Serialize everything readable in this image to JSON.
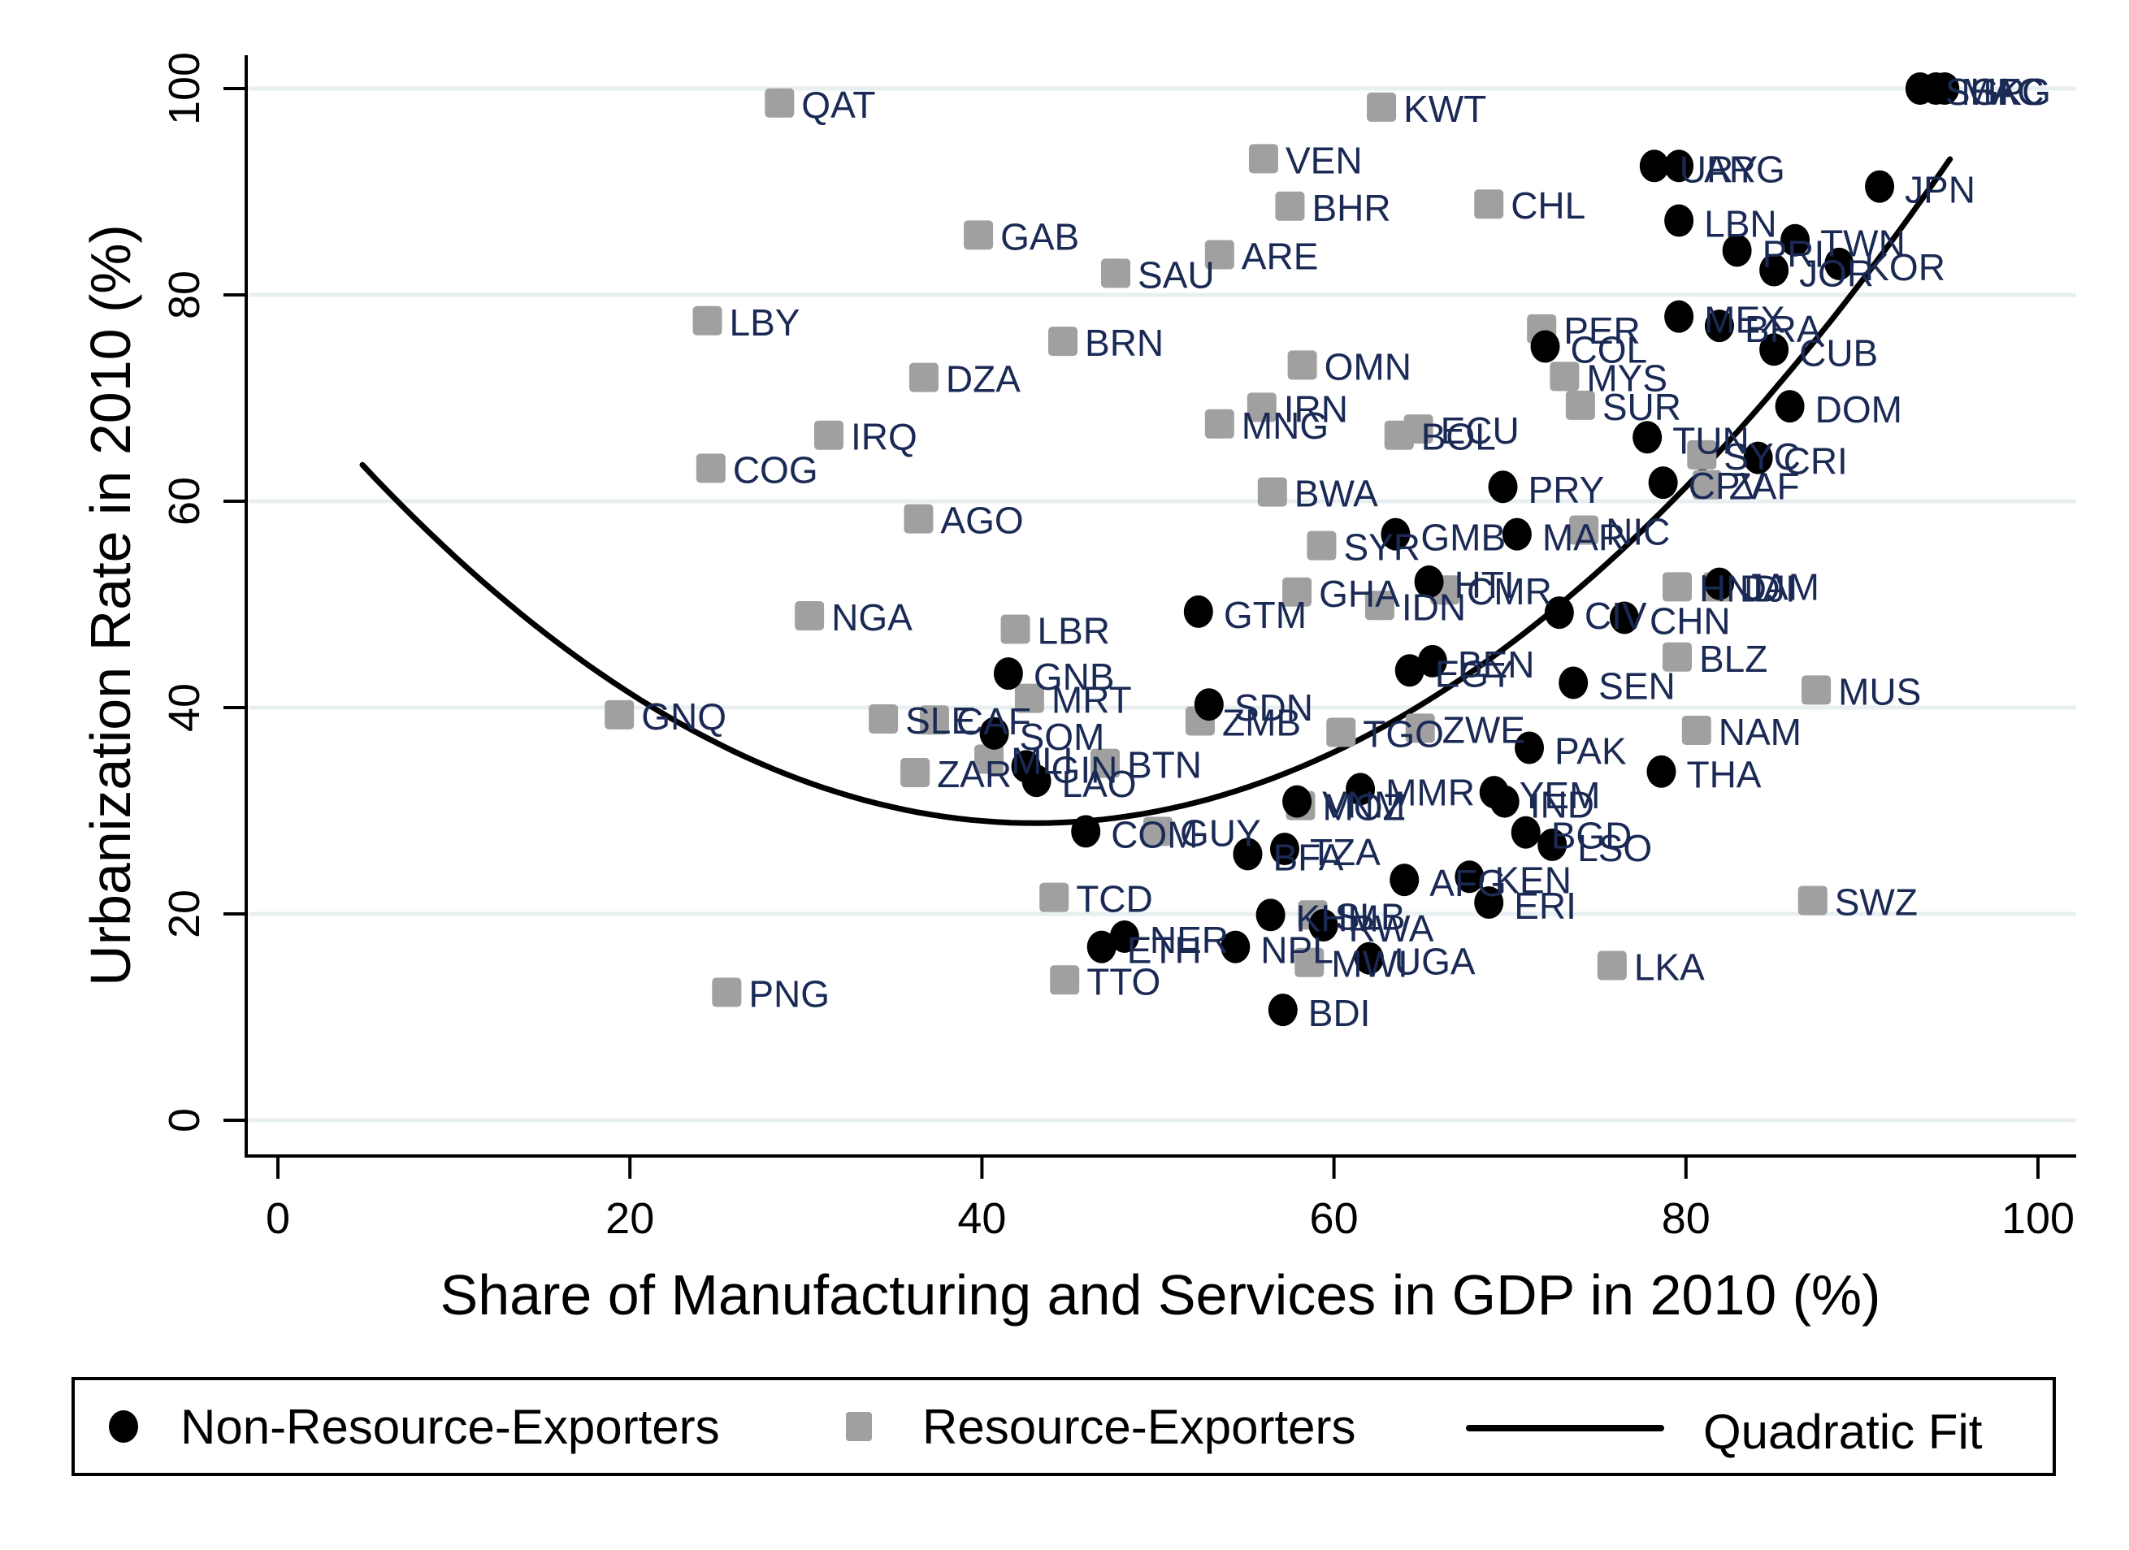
{
  "chart_data": {
    "type": "scatter",
    "title": "",
    "xlabel": "Share of Manufacturing and Services in GDP in 2010 (%)",
    "ylabel": "Urbanization Rate in 2010 (%)",
    "xlim": [
      -2,
      102
    ],
    "ylim": [
      -3,
      103
    ],
    "xticks": [
      0,
      20,
      40,
      60,
      80,
      100
    ],
    "yticks": [
      0,
      20,
      40,
      60,
      80,
      100
    ],
    "grid": "horizontal",
    "legend_position": "bottom",
    "colors": {
      "non_resource": "#000000",
      "resource": "#a0a0a0",
      "fit": "#000000",
      "label": "#1a2a55",
      "grid": "#e8eff1"
    },
    "legend": [
      {
        "name": "Non-Resource-Exporters",
        "marker": "circle"
      },
      {
        "name": "Resource-Exporters",
        "marker": "square"
      },
      {
        "name": "Quadratic Fit",
        "marker": "line"
      }
    ],
    "fit": {
      "name": "Quadratic Fit",
      "formula": "y = 28.8 + 0.0238*(x-43)^2",
      "vertex_x": 43,
      "vertex_y": 28.8,
      "a": 0.0238,
      "x_range": [
        4.8,
        95
      ]
    },
    "series": [
      {
        "name": "Non-Resource-Exporters",
        "points": [
          {
            "label": "SGP",
            "x": 93.3,
            "y": 100.0
          },
          {
            "label": "MAC",
            "x": 94.2,
            "y": 100.0
          },
          {
            "label": "HKG",
            "x": 94.7,
            "y": 100.0
          },
          {
            "label": "URY",
            "x": 78.2,
            "y": 92.5
          },
          {
            "label": "ARG",
            "x": 79.6,
            "y": 92.5
          },
          {
            "label": "JPN",
            "x": 91.0,
            "y": 90.5
          },
          {
            "label": "LBN",
            "x": 79.6,
            "y": 87.2
          },
          {
            "label": "PRI",
            "x": 82.9,
            "y": 84.3
          },
          {
            "label": "TWN",
            "x": 86.2,
            "y": 85.3
          },
          {
            "label": "JOR",
            "x": 85.0,
            "y": 82.4
          },
          {
            "label": "KOR",
            "x": 88.7,
            "y": 83.0
          },
          {
            "label": "MEX",
            "x": 79.6,
            "y": 77.9
          },
          {
            "label": "BRA",
            "x": 81.9,
            "y": 77.0
          },
          {
            "label": "CUB",
            "x": 85.0,
            "y": 74.7
          },
          {
            "label": "COL",
            "x": 72.0,
            "y": 75.0
          },
          {
            "label": "DOM",
            "x": 85.9,
            "y": 69.2
          },
          {
            "label": "TUN",
            "x": 77.8,
            "y": 66.2
          },
          {
            "label": "CRI",
            "x": 84.1,
            "y": 64.2
          },
          {
            "label": "CPV",
            "x": 78.7,
            "y": 61.8
          },
          {
            "label": "PRY",
            "x": 69.6,
            "y": 61.4
          },
          {
            "label": "GMB",
            "x": 63.5,
            "y": 56.8
          },
          {
            "label": "MAR",
            "x": 70.4,
            "y": 56.8
          },
          {
            "label": "HTI",
            "x": 65.4,
            "y": 52.2
          },
          {
            "label": "JAM",
            "x": 81.9,
            "y": 52.0
          },
          {
            "label": "GTM",
            "x": 52.3,
            "y": 49.3
          },
          {
            "label": "CIV",
            "x": 72.8,
            "y": 49.2
          },
          {
            "label": "CHN",
            "x": 76.5,
            "y": 48.7
          },
          {
            "label": "GNB",
            "x": 41.5,
            "y": 43.3
          },
          {
            "label": "BEN",
            "x": 65.6,
            "y": 44.5
          },
          {
            "label": "EGY",
            "x": 64.3,
            "y": 43.6
          },
          {
            "label": "SEN",
            "x": 73.6,
            "y": 42.4
          },
          {
            "label": "SDN",
            "x": 52.9,
            "y": 40.3
          },
          {
            "label": "SOM",
            "x": 40.7,
            "y": 37.5
          },
          {
            "label": "PAK",
            "x": 71.1,
            "y": 36.1
          },
          {
            "label": "THA",
            "x": 78.6,
            "y": 33.8
          },
          {
            "label": "GIN",
            "x": 42.5,
            "y": 34.3
          },
          {
            "label": "LAO",
            "x": 43.1,
            "y": 32.9
          },
          {
            "label": "VNM",
            "x": 57.9,
            "y": 30.9
          },
          {
            "label": "MMR",
            "x": 61.5,
            "y": 32.1
          },
          {
            "label": "YEM",
            "x": 69.1,
            "y": 31.8
          },
          {
            "label": "IND",
            "x": 69.7,
            "y": 30.9
          },
          {
            "label": "BGD",
            "x": 70.9,
            "y": 27.9
          },
          {
            "label": "LSO",
            "x": 72.4,
            "y": 26.7
          },
          {
            "label": "COM",
            "x": 45.9,
            "y": 28.0
          },
          {
            "label": "BFA",
            "x": 55.1,
            "y": 25.8
          },
          {
            "label": "TZA",
            "x": 57.2,
            "y": 26.3
          },
          {
            "label": "AFG",
            "x": 64.0,
            "y": 23.3
          },
          {
            "label": "KEN",
            "x": 67.7,
            "y": 23.6
          },
          {
            "label": "ERI",
            "x": 68.8,
            "y": 21.1
          },
          {
            "label": "KHM",
            "x": 56.4,
            "y": 19.9
          },
          {
            "label": "RWA",
            "x": 59.4,
            "y": 18.9
          },
          {
            "label": "NER",
            "x": 48.1,
            "y": 17.8
          },
          {
            "label": "ETH",
            "x": 46.8,
            "y": 16.8
          },
          {
            "label": "NPL",
            "x": 54.4,
            "y": 16.8
          },
          {
            "label": "UGA",
            "x": 62.0,
            "y": 15.7
          },
          {
            "label": "BDI",
            "x": 57.1,
            "y": 10.7
          }
        ]
      },
      {
        "name": "Resource-Exporters",
        "points": [
          {
            "label": "QAT",
            "x": 28.5,
            "y": 98.6
          },
          {
            "label": "KWT",
            "x": 62.7,
            "y": 98.2
          },
          {
            "label": "VEN",
            "x": 56.0,
            "y": 93.2
          },
          {
            "label": "BHR",
            "x": 57.5,
            "y": 88.6
          },
          {
            "label": "CHL",
            "x": 68.8,
            "y": 88.8
          },
          {
            "label": "GAB",
            "x": 39.8,
            "y": 85.8
          },
          {
            "label": "ARE",
            "x": 53.5,
            "y": 83.9
          },
          {
            "label": "SAU",
            "x": 47.6,
            "y": 82.1
          },
          {
            "label": "LBY",
            "x": 24.4,
            "y": 77.5
          },
          {
            "label": "BRN",
            "x": 44.6,
            "y": 75.5
          },
          {
            "label": "PER",
            "x": 71.8,
            "y": 76.7
          },
          {
            "label": "DZA",
            "x": 36.7,
            "y": 72.0
          },
          {
            "label": "OMN",
            "x": 58.2,
            "y": 73.2
          },
          {
            "label": "MYS",
            "x": 73.1,
            "y": 72.1
          },
          {
            "label": "IRN",
            "x": 55.9,
            "y": 69.1
          },
          {
            "label": "SUR",
            "x": 74.0,
            "y": 69.3
          },
          {
            "label": "MNG",
            "x": 53.5,
            "y": 67.5
          },
          {
            "label": "IRQ",
            "x": 31.3,
            "y": 66.4
          },
          {
            "label": "BOL",
            "x": 63.7,
            "y": 66.4
          },
          {
            "label": "ECU",
            "x": 64.8,
            "y": 67.0
          },
          {
            "label": "COG",
            "x": 24.6,
            "y": 63.2
          },
          {
            "label": "SYC",
            "x": 80.9,
            "y": 64.5
          },
          {
            "label": "ZAF",
            "x": 81.2,
            "y": 61.6
          },
          {
            "label": "AGO",
            "x": 36.4,
            "y": 58.3
          },
          {
            "label": "BWA",
            "x": 56.5,
            "y": 60.9
          },
          {
            "label": "SYR",
            "x": 59.3,
            "y": 55.7
          },
          {
            "label": "NIC",
            "x": 74.2,
            "y": 57.2
          },
          {
            "label": "GHA",
            "x": 57.9,
            "y": 51.2
          },
          {
            "label": "IDN",
            "x": 62.6,
            "y": 49.9
          },
          {
            "label": "CMR",
            "x": 66.3,
            "y": 51.4
          },
          {
            "label": "HND",
            "x": 79.5,
            "y": 51.7
          },
          {
            "label": "DJI",
            "x": 81.8,
            "y": 51.7
          },
          {
            "label": "NGA",
            "x": 30.2,
            "y": 48.9
          },
          {
            "label": "LBR",
            "x": 41.9,
            "y": 47.6
          },
          {
            "label": "BLZ",
            "x": 79.5,
            "y": 44.9
          },
          {
            "label": "MRT",
            "x": 42.7,
            "y": 40.9
          },
          {
            "label": "MUS",
            "x": 87.4,
            "y": 41.7
          },
          {
            "label": "GNQ",
            "x": 19.4,
            "y": 39.3
          },
          {
            "label": "SLE",
            "x": 34.4,
            "y": 38.9
          },
          {
            "label": "CAF",
            "x": 37.3,
            "y": 38.8
          },
          {
            "label": "ZMB",
            "x": 52.4,
            "y": 38.7
          },
          {
            "label": "TGO",
            "x": 60.4,
            "y": 37.6
          },
          {
            "label": "ZWE",
            "x": 64.9,
            "y": 38.0
          },
          {
            "label": "NAM",
            "x": 80.6,
            "y": 37.8
          },
          {
            "label": "ZAR",
            "x": 36.2,
            "y": 33.7
          },
          {
            "label": "MLI",
            "x": 40.4,
            "y": 35.0
          },
          {
            "label": "BTN",
            "x": 47.0,
            "y": 34.6
          },
          {
            "label": "GUY",
            "x": 50.0,
            "y": 28.0
          },
          {
            "label": "MOZ",
            "x": 58.1,
            "y": 30.5
          },
          {
            "label": "TCD",
            "x": 44.1,
            "y": 21.6
          },
          {
            "label": "SWZ",
            "x": 87.2,
            "y": 21.3
          },
          {
            "label": "SLB",
            "x": 58.8,
            "y": 19.9
          },
          {
            "label": "MWI",
            "x": 58.6,
            "y": 15.3
          },
          {
            "label": "PNG",
            "x": 25.5,
            "y": 12.4
          },
          {
            "label": "TTO",
            "x": 44.7,
            "y": 13.6
          },
          {
            "label": "LKA",
            "x": 75.8,
            "y": 15.0
          }
        ]
      }
    ]
  }
}
